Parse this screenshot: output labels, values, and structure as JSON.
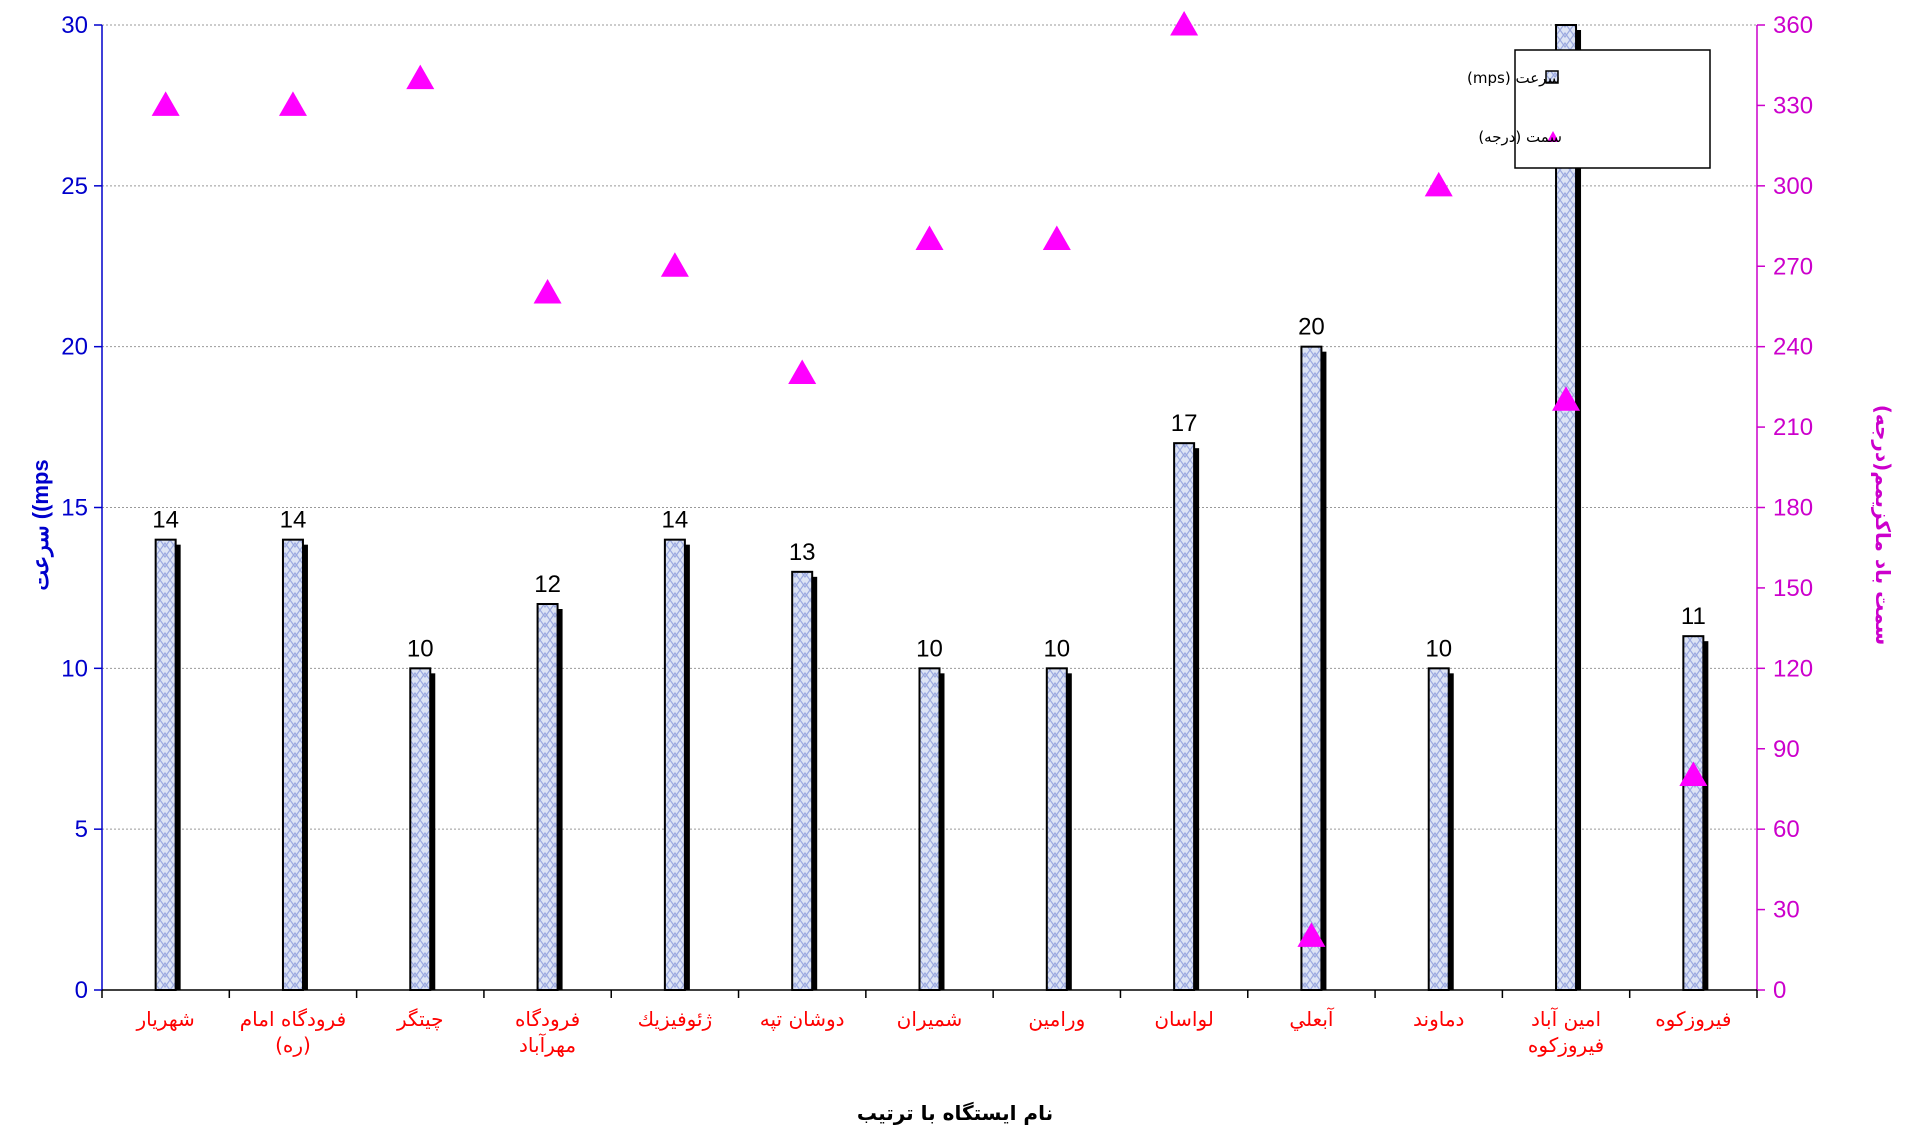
{
  "chart_data": {
    "type": "bar",
    "categories": [
      [
        "شهريار"
      ],
      [
        "فرودگاه امام",
        "(ره)"
      ],
      [
        "چيتگر"
      ],
      [
        "فرودگاه",
        "مهرآباد"
      ],
      [
        "ژئوفيزيك"
      ],
      [
        "دوشان تپه"
      ],
      [
        "شميران"
      ],
      [
        "ورامين"
      ],
      [
        "لواسان"
      ],
      [
        "آبعلي"
      ],
      [
        "دماوند"
      ],
      [
        "امين آباد",
        "فيروزكوه"
      ],
      [
        "فيروزكوه"
      ]
    ],
    "series": [
      {
        "name": "سرعت  (mps)",
        "type": "bar",
        "axis": "left",
        "values": [
          14,
          14,
          10,
          12,
          14,
          13,
          10,
          10,
          17,
          20,
          10,
          30,
          11
        ],
        "labels": [
          "14",
          "14",
          "10",
          "12",
          "14",
          "13",
          "10",
          "10",
          "17",
          "20",
          "10",
          "",
          "11"
        ]
      },
      {
        "name": "سمت  (درجه)",
        "type": "scatter",
        "axis": "right",
        "values": [
          330,
          330,
          340,
          260,
          270,
          230,
          280,
          280,
          360,
          20,
          300,
          220,
          80
        ]
      }
    ],
    "ylabel": "سرعت ((mps",
    "y2label": "سمت باد ماكزيمم(درجه)",
    "xlabel": "نام ايستگاه با ترتيب",
    "ylim": [
      0,
      30
    ],
    "y2lim": [
      0,
      360
    ],
    "yticks": [
      0,
      5,
      10,
      15,
      20,
      25,
      30
    ],
    "y2ticks": [
      0,
      30,
      60,
      90,
      120,
      150,
      180,
      210,
      240,
      270,
      300,
      330,
      360
    ],
    "grid": true,
    "legend": "top-right",
    "colors": {
      "bar_fill": "#dde4f4",
      "bar_pattern": "#9aa8e0",
      "bar_edge": "#000000",
      "marker": "#ff00ff",
      "left_axis": "#0000cc",
      "right_axis": "#cc00cc",
      "category_text": "#ff0000"
    }
  }
}
